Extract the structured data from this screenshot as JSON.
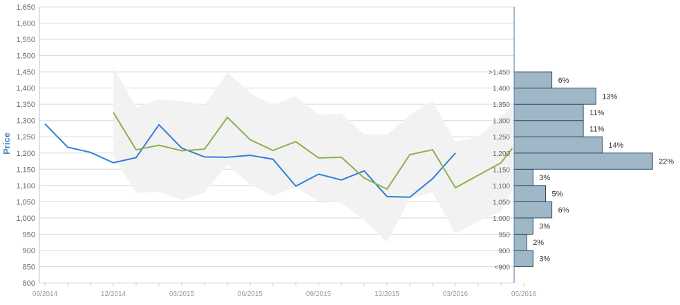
{
  "chart_data": {
    "type": "line",
    "ylabel": "Price",
    "ylim": [
      800,
      1650
    ],
    "yticks": [
      "800",
      "850",
      "900",
      "950",
      "1,000",
      "1,050",
      "1,100",
      "1,150",
      "1,200",
      "1,250",
      "1,300",
      "1,350",
      "1,400",
      "1,450",
      "1,500",
      "1,550",
      "1,600",
      "1,650"
    ],
    "x_tick_labels": [
      "09/2014",
      "12/2014",
      "03/2015",
      "06/2015",
      "09/2015",
      "12/2015",
      "03/2016",
      "05/2016"
    ],
    "series": [
      {
        "color": "#2f7ed8",
        "points": [
          [
            0,
            1290
          ],
          [
            1,
            1218
          ],
          [
            2,
            1202
          ],
          [
            3,
            1170
          ],
          [
            4,
            1186
          ],
          [
            5,
            1287
          ],
          [
            6,
            1215
          ],
          [
            7,
            1188
          ],
          [
            8,
            1187
          ],
          [
            9,
            1193
          ],
          [
            10,
            1181
          ],
          [
            11,
            1098
          ],
          [
            12,
            1135
          ],
          [
            13,
            1117
          ],
          [
            14,
            1145
          ],
          [
            15,
            1066
          ],
          [
            16,
            1064
          ],
          [
            17,
            1121
          ],
          [
            18,
            1200
          ]
        ]
      },
      {
        "color": "#8bb04a",
        "points": [
          [
            3,
            1325
          ],
          [
            4,
            1210
          ],
          [
            5,
            1224
          ],
          [
            6,
            1207
          ],
          [
            7,
            1212
          ],
          [
            8,
            1310
          ],
          [
            9,
            1241
          ],
          [
            10,
            1208
          ],
          [
            11,
            1235
          ],
          [
            12,
            1185
          ],
          [
            13,
            1187
          ],
          [
            14,
            1123
          ],
          [
            15,
            1089
          ],
          [
            16,
            1195
          ],
          [
            17,
            1210
          ],
          [
            18,
            1093
          ],
          [
            20,
            1170
          ],
          [
            20.5,
            1215
          ]
        ]
      }
    ],
    "range_band": {
      "color": "#f2f2f2",
      "upper": [
        [
          3,
          1465
        ],
        [
          4,
          1340
        ],
        [
          5,
          1365
        ],
        [
          6,
          1360
        ],
        [
          7,
          1348
        ],
        [
          8,
          1448
        ],
        [
          9,
          1385
        ],
        [
          10,
          1348
        ],
        [
          11,
          1375
        ],
        [
          12,
          1318
        ],
        [
          13,
          1322
        ],
        [
          14,
          1258
        ],
        [
          15,
          1256
        ],
        [
          16,
          1318
        ],
        [
          17,
          1360
        ],
        [
          18,
          1235
        ],
        [
          19,
          1250
        ],
        [
          20.5,
          1345
        ]
      ],
      "lower": [
        [
          3,
          1190
        ],
        [
          4,
          1078
        ],
        [
          5,
          1080
        ],
        [
          6,
          1055
        ],
        [
          7,
          1078
        ],
        [
          8,
          1165
        ],
        [
          9,
          1103
        ],
        [
          10,
          1068
        ],
        [
          11,
          1095
        ],
        [
          12,
          1052
        ],
        [
          13,
          1048
        ],
        [
          14,
          993
        ],
        [
          15,
          926
        ],
        [
          16,
          1060
        ],
        [
          17,
          1078
        ],
        [
          18,
          952
        ],
        [
          19,
          990
        ],
        [
          20,
          1020
        ],
        [
          20.5,
          1085
        ]
      ]
    },
    "histogram": {
      "color": "#9fb7c6",
      "buckets": [
        {
          "label": "<900",
          "percent": 3,
          "percent_label": "3%"
        },
        {
          "label": "900",
          "percent": 2,
          "percent_label": "2%"
        },
        {
          "label": "950",
          "percent": 3,
          "percent_label": "3%"
        },
        {
          "label": "1,000",
          "percent": 6,
          "percent_label": "6%"
        },
        {
          "label": "1,050",
          "percent": 5,
          "percent_label": "5%"
        },
        {
          "label": "1,100",
          "percent": 3,
          "percent_label": "3%"
        },
        {
          "label": "1,150",
          "percent": 22,
          "percent_label": "22%"
        },
        {
          "label": "1,200",
          "percent": 14,
          "percent_label": "14%"
        },
        {
          "label": "1,250",
          "percent": 11,
          "percent_label": "11%"
        },
        {
          "label": "1,300",
          "percent": 11,
          "percent_label": "11%"
        },
        {
          "label": "1,350",
          "percent": 13,
          "percent_label": "13%"
        },
        {
          "label": "1,400",
          "percent": 6,
          "percent_label": "6%"
        },
        {
          "label": ">1,450",
          "percent": 0,
          "percent_label": ""
        }
      ]
    }
  }
}
